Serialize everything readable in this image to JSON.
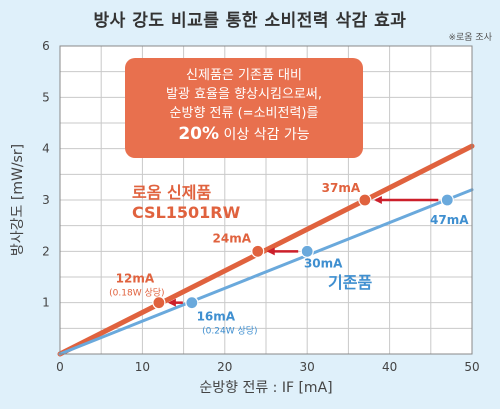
{
  "title": "방사 강도 비교를 통한 소비전력 삭감 효과",
  "source_note": "※로옴 조사",
  "callout": {
    "line1": "신제품은 기존품 대비",
    "line2": "발광 효율을 향상시킴으로써,",
    "line3": "순방향 전류 (=소비전력)를",
    "highlight": "20%",
    "line4_rest": " 이상 삭감 가능"
  },
  "chart_data": {
    "type": "line",
    "xlabel": "순방향 전류 : IF [mA]",
    "ylabel": "방사강도 [mW/sr]",
    "xlim": [
      0,
      50
    ],
    "ylim": [
      0,
      6
    ],
    "x_ticks": [
      "0",
      "10",
      "20",
      "30",
      "40",
      "50"
    ],
    "y_ticks": [
      "1",
      "2",
      "3",
      "4",
      "5",
      "6"
    ],
    "grid": true,
    "series": [
      {
        "name": "로옴 신제품",
        "name_line2": "CSL1501RW",
        "color": "#e0623e",
        "x": [
          0,
          50
        ],
        "y": [
          0,
          4.05
        ],
        "points": [
          {
            "x": 12,
            "y": 1.0,
            "label": "12mA",
            "sub": "(0.18W 상당)"
          },
          {
            "x": 24,
            "y": 2.0,
            "label": "24mA",
            "sub": ""
          },
          {
            "x": 37,
            "y": 3.0,
            "label": "37mA",
            "sub": ""
          }
        ]
      },
      {
        "name": "기존품",
        "name_line2": "",
        "color": "#6aa9dc",
        "x": [
          0,
          50
        ],
        "y": [
          0,
          3.2
        ],
        "points": [
          {
            "x": 16,
            "y": 1.0,
            "label": "16mA",
            "sub": "(0.24W 상당)"
          },
          {
            "x": 30,
            "y": 2.0,
            "label": "30mA",
            "sub": ""
          },
          {
            "x": 47,
            "y": 3.0,
            "label": "47mA",
            "sub": ""
          }
        ]
      }
    ],
    "arrow_color": "#cc1f2a"
  }
}
